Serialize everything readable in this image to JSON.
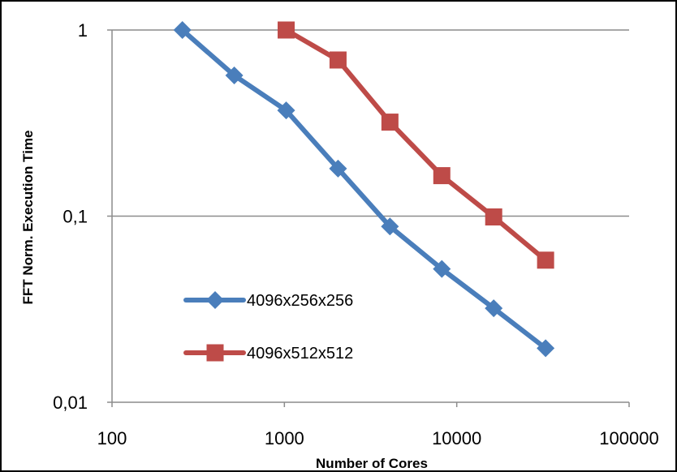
{
  "chart_data": {
    "type": "line",
    "title": "",
    "xlabel": "Number of Cores",
    "ylabel": "FFT Norm. Execution Time",
    "x_scale": "log",
    "y_scale": "log",
    "xlim": [
      100,
      100000
    ],
    "ylim": [
      0.01,
      1
    ],
    "x_ticks": [
      100,
      1000,
      10000,
      100000
    ],
    "x_tick_labels": [
      "100",
      "1000",
      "10000",
      "100000"
    ],
    "y_ticks": [
      0.01,
      0.1,
      1
    ],
    "y_tick_labels": [
      "0,01",
      "0,1",
      "1"
    ],
    "grid": "horizontal",
    "legend_position": "left-center",
    "series": [
      {
        "name": "4096x256x256",
        "color": "#4a7ebb",
        "marker": "diamond",
        "x": [
          256,
          512,
          1024,
          2048,
          4096,
          8192,
          16384,
          32768
        ],
        "y": [
          1.0,
          0.57,
          0.37,
          0.18,
          0.088,
          0.052,
          0.032,
          0.0195
        ]
      },
      {
        "name": "4096x512x512",
        "color": "#be4b48",
        "marker": "square",
        "x": [
          1024,
          2048,
          4096,
          8192,
          16384,
          32768
        ],
        "y": [
          1.0,
          0.69,
          0.32,
          0.165,
          0.099,
          0.058
        ]
      }
    ]
  }
}
